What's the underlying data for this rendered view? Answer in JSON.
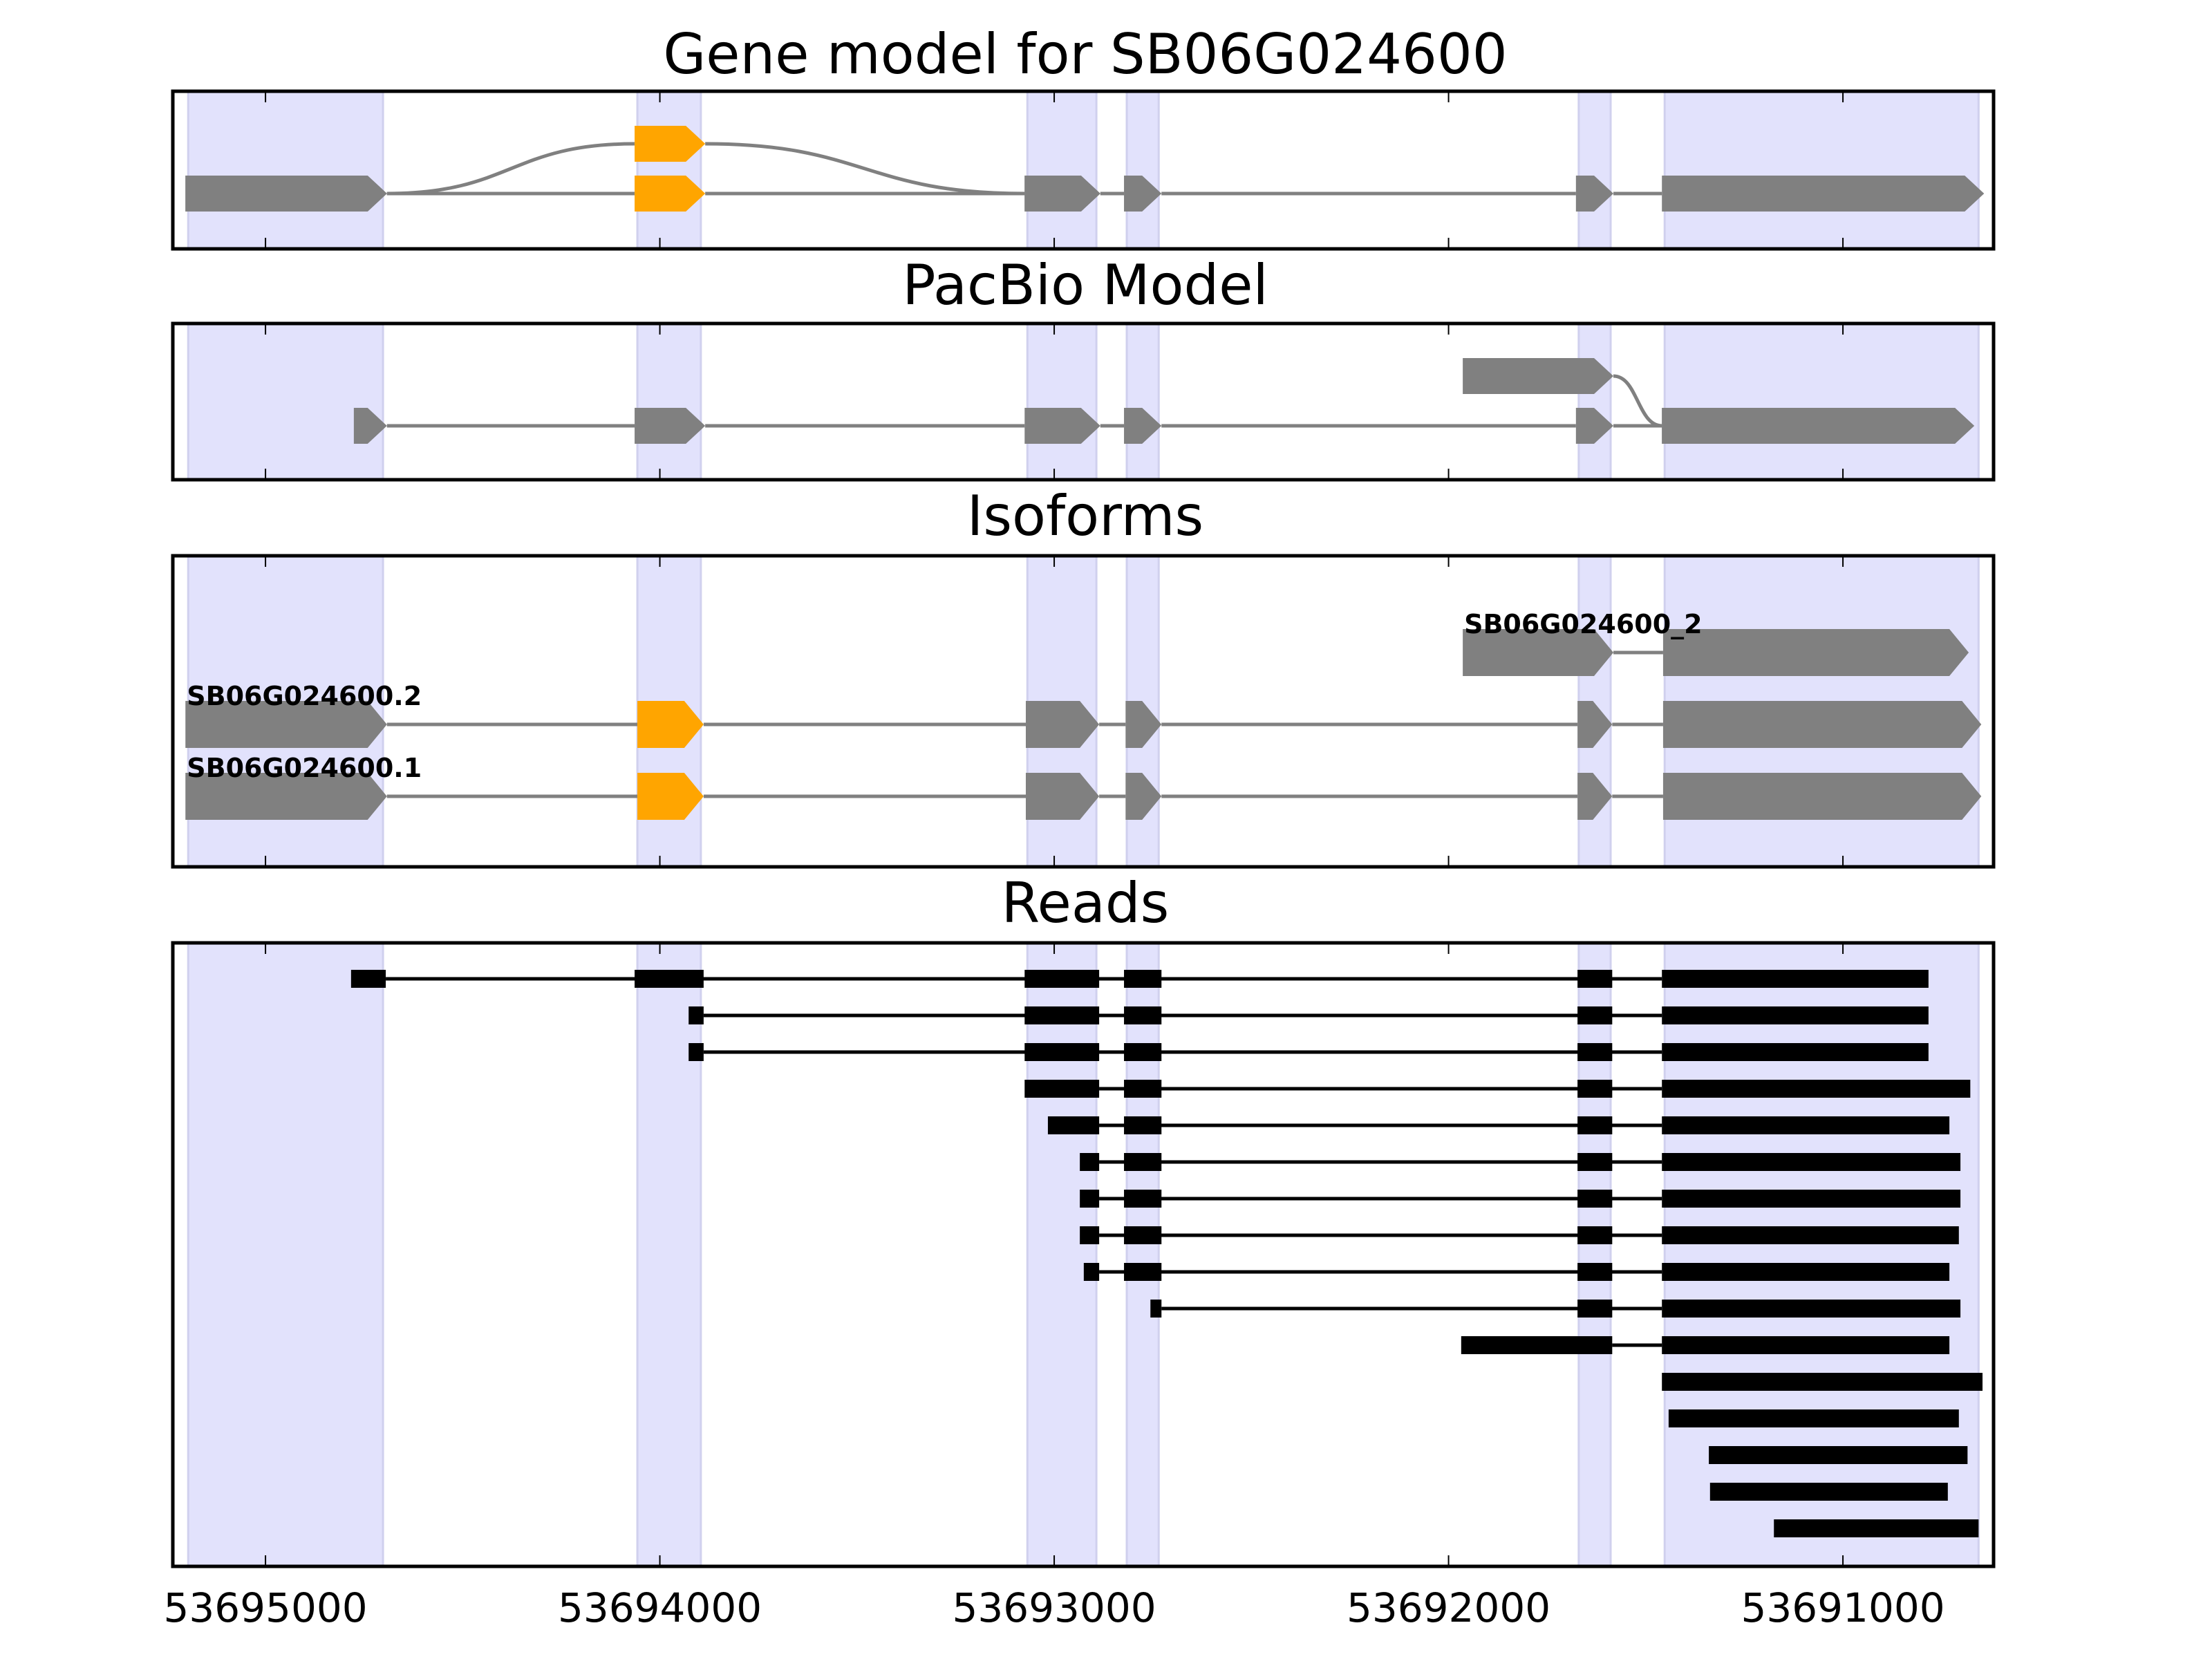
{
  "chart_data": {
    "type": "gene-structure",
    "xlim": [
      53695235,
      53690618
    ],
    "x_reversed": true,
    "xticks": [
      53695000,
      53694000,
      53693000,
      53692000,
      53691000
    ],
    "xtick_labels": [
      "53695000",
      "53694000",
      "53693000",
      "53692000",
      "53691000"
    ],
    "colors": {
      "exon": "#808080",
      "alt_exon": "#FFA500",
      "read": "#000000",
      "highlight": "#E2E2FC",
      "highlight_edge": "#D0D0EE",
      "intron": "#808080"
    },
    "highlights": [
      [
        53695196,
        53694702
      ],
      [
        53694057,
        53693896
      ],
      [
        53693068,
        53692893
      ],
      [
        53692816,
        53692735
      ],
      [
        53691670,
        53691589
      ],
      [
        53691452,
        53690656
      ]
    ],
    "panels": [
      {
        "title": "Gene model for SB06G024600",
        "rows": 2,
        "transcripts": [
          {
            "label": "",
            "exons": [
              {
                "row": 1,
                "start": 53695203,
                "end": 53694692,
                "alt": false
              },
              {
                "row": 1,
                "start": 53694064,
                "end": 53693885,
                "alt": true
              },
              {
                "row": 1,
                "start": 53693075,
                "end": 53692883,
                "alt": false
              },
              {
                "row": 1,
                "start": 53692823,
                "end": 53692728,
                "alt": false
              },
              {
                "row": 1,
                "start": 53691677,
                "end": 53691582,
                "alt": false
              },
              {
                "row": 1,
                "start": 53691459,
                "end": 53690642,
                "alt": false
              }
            ]
          },
          {
            "label": "",
            "exons": [
              {
                "row": 1,
                "start": 53695203,
                "end": 53694692,
                "alt": false
              },
              {
                "row": 0,
                "start": 53694064,
                "end": 53693885,
                "alt": true
              },
              {
                "row": 1,
                "start": 53693075,
                "end": 53692883,
                "alt": false
              }
            ]
          }
        ]
      },
      {
        "title": "PacBio Model",
        "rows": 2,
        "transcripts": [
          {
            "label": "",
            "exons": [
              {
                "row": 1,
                "start": 53694776,
                "end": 53694692,
                "alt": false
              },
              {
                "row": 1,
                "start": 53694064,
                "end": 53693885,
                "alt": false
              },
              {
                "row": 1,
                "start": 53693075,
                "end": 53692883,
                "alt": false
              },
              {
                "row": 1,
                "start": 53692823,
                "end": 53692728,
                "alt": false
              },
              {
                "row": 1,
                "start": 53691677,
                "end": 53691582,
                "alt": false
              },
              {
                "row": 1,
                "start": 53691459,
                "end": 53690667,
                "alt": false
              }
            ]
          },
          {
            "label": "",
            "exons": [
              {
                "row": 0,
                "start": 53691964,
                "end": 53691582,
                "alt": false
              },
              {
                "row": 1,
                "start": 53691459,
                "end": 53690667,
                "alt": false
              }
            ]
          }
        ]
      },
      {
        "title": "Isoforms",
        "rows": 3,
        "transcripts": [
          {
            "label": "SB06G024600_2",
            "exons": [
              {
                "row": 0,
                "start": 53691964,
                "end": 53691582,
                "alt": false
              },
              {
                "row": 0,
                "start": 53691456,
                "end": 53690681,
                "alt": false
              }
            ]
          },
          {
            "label": "SB06G024600.2",
            "exons": [
              {
                "row": 1,
                "start": 53695203,
                "end": 53694692,
                "alt": false
              },
              {
                "row": 1,
                "start": 53694057,
                "end": 53693889,
                "alt": true
              },
              {
                "row": 1,
                "start": 53693072,
                "end": 53692886,
                "alt": false
              },
              {
                "row": 1,
                "start": 53692819,
                "end": 53692728,
                "alt": false
              },
              {
                "row": 1,
                "start": 53691673,
                "end": 53691585,
                "alt": false
              },
              {
                "row": 1,
                "start": 53691456,
                "end": 53690649,
                "alt": false
              }
            ]
          },
          {
            "label": "SB06G024600.1",
            "exons": [
              {
                "row": 2,
                "start": 53695203,
                "end": 53694692,
                "alt": false
              },
              {
                "row": 2,
                "start": 53694057,
                "end": 53693889,
                "alt": true
              },
              {
                "row": 2,
                "start": 53693072,
                "end": 53692886,
                "alt": false
              },
              {
                "row": 2,
                "start": 53692819,
                "end": 53692728,
                "alt": false
              },
              {
                "row": 2,
                "start": 53691673,
                "end": 53691585,
                "alt": false
              },
              {
                "row": 2,
                "start": 53691456,
                "end": 53690649,
                "alt": false
              }
            ]
          }
        ]
      }
    ],
    "reads_panel": {
      "title": "Reads",
      "reads": [
        [
          [
            53694783,
            53694695
          ],
          [
            53694064,
            53693889
          ],
          [
            53693075,
            53692886
          ],
          [
            53692823,
            53692728
          ],
          [
            53691673,
            53691585
          ],
          [
            53691459,
            53690783
          ]
        ],
        [
          [
            53693927,
            53693889
          ],
          [
            53693075,
            53692886
          ],
          [
            53692823,
            53692728
          ],
          [
            53691673,
            53691585
          ],
          [
            53691459,
            53690783
          ]
        ],
        [
          [
            53693927,
            53693889
          ],
          [
            53693075,
            53692886
          ],
          [
            53692823,
            53692728
          ],
          [
            53691673,
            53691585
          ],
          [
            53691459,
            53690783
          ]
        ],
        [
          [
            53693075,
            53692886
          ],
          [
            53692823,
            53692728
          ],
          [
            53691673,
            53691585
          ],
          [
            53691459,
            53690677
          ]
        ],
        [
          [
            53693016,
            53692886
          ],
          [
            53692823,
            53692728
          ],
          [
            53691673,
            53691585
          ],
          [
            53691459,
            53690730
          ]
        ],
        [
          [
            53692935,
            53692886
          ],
          [
            53692823,
            53692728
          ],
          [
            53691673,
            53691585
          ],
          [
            53691459,
            53690702
          ]
        ],
        [
          [
            53692935,
            53692886
          ],
          [
            53692823,
            53692728
          ],
          [
            53691673,
            53691585
          ],
          [
            53691459,
            53690702
          ]
        ],
        [
          [
            53692935,
            53692886
          ],
          [
            53692823,
            53692728
          ],
          [
            53691673,
            53691585
          ],
          [
            53691459,
            53690706
          ]
        ],
        [
          [
            53692925,
            53692886
          ],
          [
            53692823,
            53692728
          ],
          [
            53691673,
            53691585
          ],
          [
            53691459,
            53690730
          ]
        ],
        [
          [
            53692756,
            53692728
          ],
          [
            53691673,
            53691585
          ],
          [
            53691459,
            53690702
          ]
        ],
        [
          [
            53691968,
            53691585
          ],
          [
            53691459,
            53690730
          ]
        ],
        [
          [
            53691459,
            53690646
          ]
        ],
        [
          [
            53691442,
            53690706
          ]
        ],
        [
          [
            53691340,
            53690684
          ]
        ],
        [
          [
            53691337,
            53690734
          ]
        ],
        [
          [
            53691175,
            53690656
          ]
        ]
      ]
    }
  }
}
